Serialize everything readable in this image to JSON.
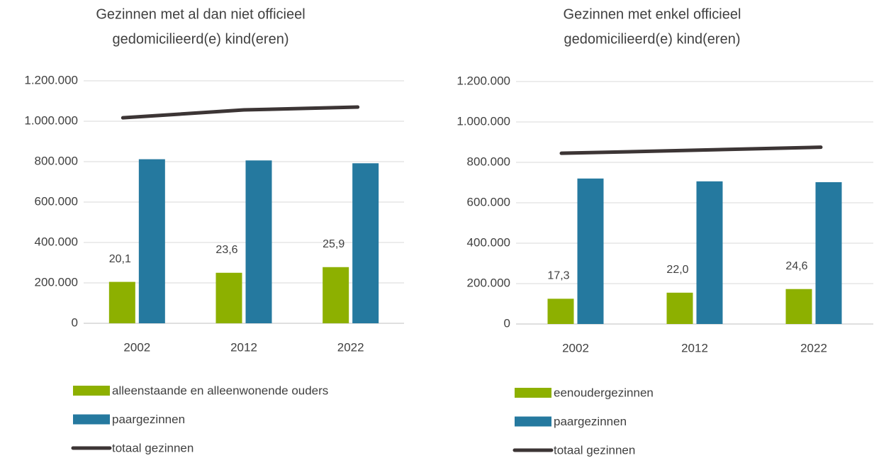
{
  "chart_data": [
    {
      "type": "bar",
      "title": [
        "Gezinnen met al dan niet officieel",
        "gedomicilieerd(e) kind(eren)"
      ],
      "categories": [
        "2002",
        "2012",
        "2022"
      ],
      "series": [
        {
          "name": "alleenstaande en alleenwonende ouders",
          "color": "#8db000",
          "values": [
            205000,
            250000,
            278000
          ]
        },
        {
          "name": "paargezinnen",
          "color": "#25799f",
          "values": [
            812000,
            806000,
            792000
          ]
        },
        {
          "name": "totaal gezinnen",
          "type": "line",
          "color": "#3c3535",
          "values": [
            1017000,
            1056000,
            1070000
          ]
        }
      ],
      "annotations": [
        "20,1",
        "23,6",
        "25,9"
      ],
      "ylim": [
        0,
        1200000
      ],
      "yticks": [
        0,
        {
          "value": 200000,
          "label": "200.000"
        },
        {
          "value": 400000,
          "label": "400.000"
        },
        {
          "value": 600000,
          "label": "600.000"
        },
        {
          "value": 800000,
          "label": "800.000"
        },
        {
          "value": 1000000,
          "label": "1.000.000"
        },
        {
          "value": 1200000,
          "label": "1.200.000"
        }
      ],
      "grid": true,
      "legend": "bottom"
    },
    {
      "type": "bar",
      "title": [
        "Gezinnen met enkel officieel",
        "gedomicilieerd(e) kind(eren)"
      ],
      "categories": [
        "2002",
        "2012",
        "2022"
      ],
      "series": [
        {
          "name": "eenoudergezinnen",
          "color": "#8db000",
          "values": [
            125000,
            155000,
            173000
          ]
        },
        {
          "name": "paargezinnen",
          "color": "#25799f",
          "values": [
            720000,
            706000,
            702000
          ]
        },
        {
          "name": "totaal gezinnen",
          "type": "line",
          "color": "#3c3535",
          "values": [
            845000,
            860000,
            875000
          ]
        }
      ],
      "annotations": [
        "17,3",
        "22,0",
        "24,6"
      ],
      "ylim": [
        0,
        1200000
      ],
      "yticks": [
        0,
        {
          "value": 200000,
          "label": "200.000"
        },
        {
          "value": 400000,
          "label": "400.000"
        },
        {
          "value": 600000,
          "label": "600.000"
        },
        {
          "value": 800000,
          "label": "800.000"
        },
        {
          "value": 1000000,
          "label": "1.000.000"
        },
        {
          "value": 1200000,
          "label": "1.200.000"
        }
      ],
      "grid": true,
      "legend": "bottom"
    }
  ]
}
